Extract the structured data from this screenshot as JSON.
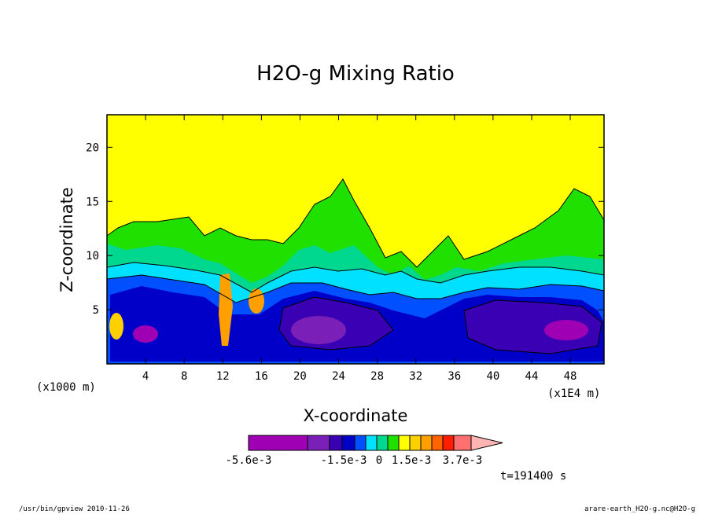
{
  "chart_data": {
    "type": "heatmap",
    "title": "H2O-g Mixing Ratio",
    "xlabel": "X-coordinate",
    "ylabel": "Z-coordinate",
    "x_scale_note": "(x1E4 m)",
    "y_scale_note": "(x1000 m)",
    "xlim": [
      0,
      51.5
    ],
    "ylim": [
      0,
      23
    ],
    "x_ticks": [
      4,
      8,
      12,
      16,
      20,
      24,
      28,
      32,
      36,
      40,
      44,
      48
    ],
    "y_ticks": [
      5,
      10,
      15,
      20
    ],
    "colorbar": {
      "colors": [
        "#a000b4",
        "#7a1fb8",
        "#3a00b4",
        "#0000c8",
        "#0050ff",
        "#00e0ff",
        "#00d890",
        "#20e000",
        "#ffff00",
        "#ffd000",
        "#ffa000",
        "#ff6400",
        "#ff1e00",
        "#ff7070",
        "#ffb4b4"
      ],
      "tick_labels": [
        "-5.6e-3",
        "-1.5e-3",
        "0",
        "1.5e-3",
        "3.7e-3"
      ]
    },
    "time_label": "t=191400 s",
    "grid": false,
    "legend": "colorbar below plot"
  },
  "footer": {
    "left": "/usr/bin/gpview  2010-11-26",
    "right": "arare-earth_H2O-g.nc@H2O-g"
  },
  "colors": {
    "background": "#ffff00",
    "contour_line": "#000000"
  }
}
